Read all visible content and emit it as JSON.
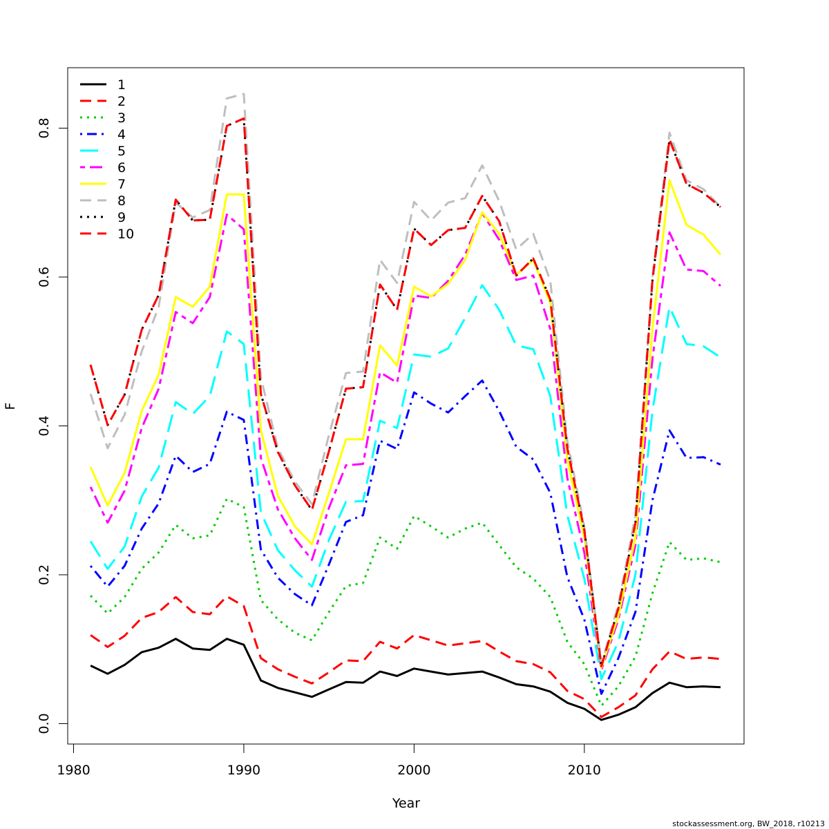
{
  "chart_data": {
    "type": "line",
    "xlabel": "Year",
    "ylabel": "F",
    "xlim": [
      1980,
      2018
    ],
    "ylim": [
      0,
      0.8
    ],
    "x_ticks": [
      "1980",
      "1990",
      "2000",
      "2010"
    ],
    "y_ticks": [
      "0.0",
      "0.2",
      "0.4",
      "0.6",
      "0.8"
    ],
    "legend_position": "top-left",
    "grid": false,
    "x": [
      1981,
      1982,
      1983,
      1984,
      1985,
      1986,
      1987,
      1988,
      1989,
      1990,
      1991,
      1992,
      1993,
      1994,
      1995,
      1996,
      1997,
      1998,
      1999,
      2000,
      2001,
      2002,
      2003,
      2004,
      2005,
      2006,
      2007,
      2008,
      2009,
      2010,
      2011,
      2012,
      2013,
      2014,
      2015,
      2016,
      2017,
      2018
    ],
    "series": [
      {
        "name": "1",
        "color": "#000000",
        "dash": "solid",
        "values": [
          0.078,
          0.067,
          0.079,
          0.096,
          0.102,
          0.114,
          0.101,
          0.099,
          0.114,
          0.106,
          0.058,
          0.048,
          0.042,
          0.036,
          0.046,
          0.056,
          0.055,
          0.07,
          0.064,
          0.074,
          0.07,
          0.066,
          0.068,
          0.07,
          0.062,
          0.053,
          0.05,
          0.043,
          0.028,
          0.02,
          0.005,
          0.012,
          0.022,
          0.041,
          0.055,
          0.049,
          0.05,
          0.049
        ]
      },
      {
        "name": "2",
        "color": "#ff0000",
        "dash": "dashed",
        "values": [
          0.119,
          0.103,
          0.118,
          0.142,
          0.15,
          0.17,
          0.15,
          0.147,
          0.171,
          0.158,
          0.088,
          0.073,
          0.063,
          0.054,
          0.069,
          0.085,
          0.084,
          0.11,
          0.101,
          0.119,
          0.112,
          0.105,
          0.108,
          0.111,
          0.097,
          0.084,
          0.08,
          0.069,
          0.044,
          0.033,
          0.009,
          0.022,
          0.038,
          0.073,
          0.097,
          0.087,
          0.089,
          0.087
        ]
      },
      {
        "name": "3",
        "color": "#00cd00",
        "dash": "dotted",
        "values": [
          0.172,
          0.148,
          0.17,
          0.208,
          0.23,
          0.267,
          0.249,
          0.253,
          0.302,
          0.291,
          0.166,
          0.14,
          0.122,
          0.112,
          0.15,
          0.185,
          0.189,
          0.25,
          0.235,
          0.279,
          0.265,
          0.25,
          0.262,
          0.27,
          0.24,
          0.21,
          0.195,
          0.17,
          0.11,
          0.08,
          0.024,
          0.05,
          0.09,
          0.175,
          0.244,
          0.22,
          0.222,
          0.217
        ]
      },
      {
        "name": "4",
        "color": "#0000ff",
        "dash": "dotdash",
        "values": [
          0.212,
          0.184,
          0.212,
          0.262,
          0.296,
          0.36,
          0.338,
          0.349,
          0.419,
          0.408,
          0.234,
          0.196,
          0.174,
          0.159,
          0.214,
          0.271,
          0.28,
          0.38,
          0.369,
          0.445,
          0.43,
          0.418,
          0.44,
          0.461,
          0.42,
          0.372,
          0.355,
          0.31,
          0.197,
          0.14,
          0.04,
          0.088,
          0.15,
          0.3,
          0.394,
          0.357,
          0.358,
          0.348
        ]
      },
      {
        "name": "5",
        "color": "#00ffff",
        "dash": "longdash",
        "values": [
          0.245,
          0.208,
          0.238,
          0.305,
          0.344,
          0.432,
          0.416,
          0.44,
          0.527,
          0.51,
          0.284,
          0.233,
          0.206,
          0.184,
          0.247,
          0.298,
          0.299,
          0.407,
          0.397,
          0.496,
          0.493,
          0.504,
          0.545,
          0.589,
          0.556,
          0.508,
          0.503,
          0.44,
          0.28,
          0.195,
          0.06,
          0.11,
          0.2,
          0.42,
          0.56,
          0.51,
          0.507,
          0.492
        ]
      },
      {
        "name": "6",
        "color": "#ff00ff",
        "dash": "twodash",
        "values": [
          0.318,
          0.27,
          0.313,
          0.397,
          0.45,
          0.553,
          0.538,
          0.573,
          0.684,
          0.664,
          0.357,
          0.288,
          0.249,
          0.22,
          0.29,
          0.347,
          0.349,
          0.472,
          0.458,
          0.575,
          0.572,
          0.595,
          0.63,
          0.686,
          0.65,
          0.596,
          0.602,
          0.53,
          0.33,
          0.23,
          0.072,
          0.14,
          0.24,
          0.49,
          0.66,
          0.61,
          0.608,
          0.588
        ]
      },
      {
        "name": "7",
        "color": "#ffff00",
        "dash": "solid",
        "values": [
          0.345,
          0.293,
          0.337,
          0.42,
          0.469,
          0.573,
          0.56,
          0.587,
          0.711,
          0.711,
          0.394,
          0.306,
          0.265,
          0.241,
          0.31,
          0.382,
          0.382,
          0.508,
          0.481,
          0.587,
          0.574,
          0.591,
          0.623,
          0.687,
          0.658,
          0.603,
          0.623,
          0.565,
          0.355,
          0.25,
          0.075,
          0.145,
          0.25,
          0.53,
          0.73,
          0.67,
          0.657,
          0.63
        ]
      },
      {
        "name": "8",
        "color": "#bebebe",
        "dash": "dashed",
        "values": [
          0.443,
          0.37,
          0.415,
          0.5,
          0.56,
          0.7,
          0.68,
          0.69,
          0.84,
          0.846,
          0.465,
          0.37,
          0.325,
          0.295,
          0.388,
          0.471,
          0.473,
          0.623,
          0.592,
          0.701,
          0.676,
          0.7,
          0.706,
          0.75,
          0.702,
          0.637,
          0.658,
          0.595,
          0.38,
          0.265,
          0.08,
          0.16,
          0.28,
          0.6,
          0.794,
          0.73,
          0.718,
          0.694
        ]
      },
      {
        "name": "9",
        "color": "#000000",
        "dash": "dotted",
        "values": [
          0.482,
          0.401,
          0.442,
          0.529,
          0.576,
          0.704,
          0.676,
          0.677,
          0.803,
          0.813,
          0.443,
          0.365,
          0.32,
          0.287,
          0.366,
          0.45,
          0.452,
          0.59,
          0.556,
          0.665,
          0.643,
          0.663,
          0.666,
          0.709,
          0.675,
          0.602,
          0.625,
          0.57,
          0.37,
          0.26,
          0.077,
          0.155,
          0.27,
          0.595,
          0.785,
          0.725,
          0.713,
          0.694
        ]
      },
      {
        "name": "10",
        "color": "#ff0000",
        "dash": "dashed",
        "values": [
          0.482,
          0.401,
          0.442,
          0.529,
          0.576,
          0.704,
          0.676,
          0.677,
          0.803,
          0.813,
          0.443,
          0.365,
          0.32,
          0.287,
          0.366,
          0.45,
          0.452,
          0.59,
          0.556,
          0.665,
          0.643,
          0.663,
          0.666,
          0.709,
          0.675,
          0.602,
          0.625,
          0.57,
          0.37,
          0.26,
          0.077,
          0.155,
          0.27,
          0.595,
          0.785,
          0.725,
          0.713,
          0.694
        ]
      }
    ],
    "footnote": "stockassessment.org, BW_2018, r10213"
  }
}
